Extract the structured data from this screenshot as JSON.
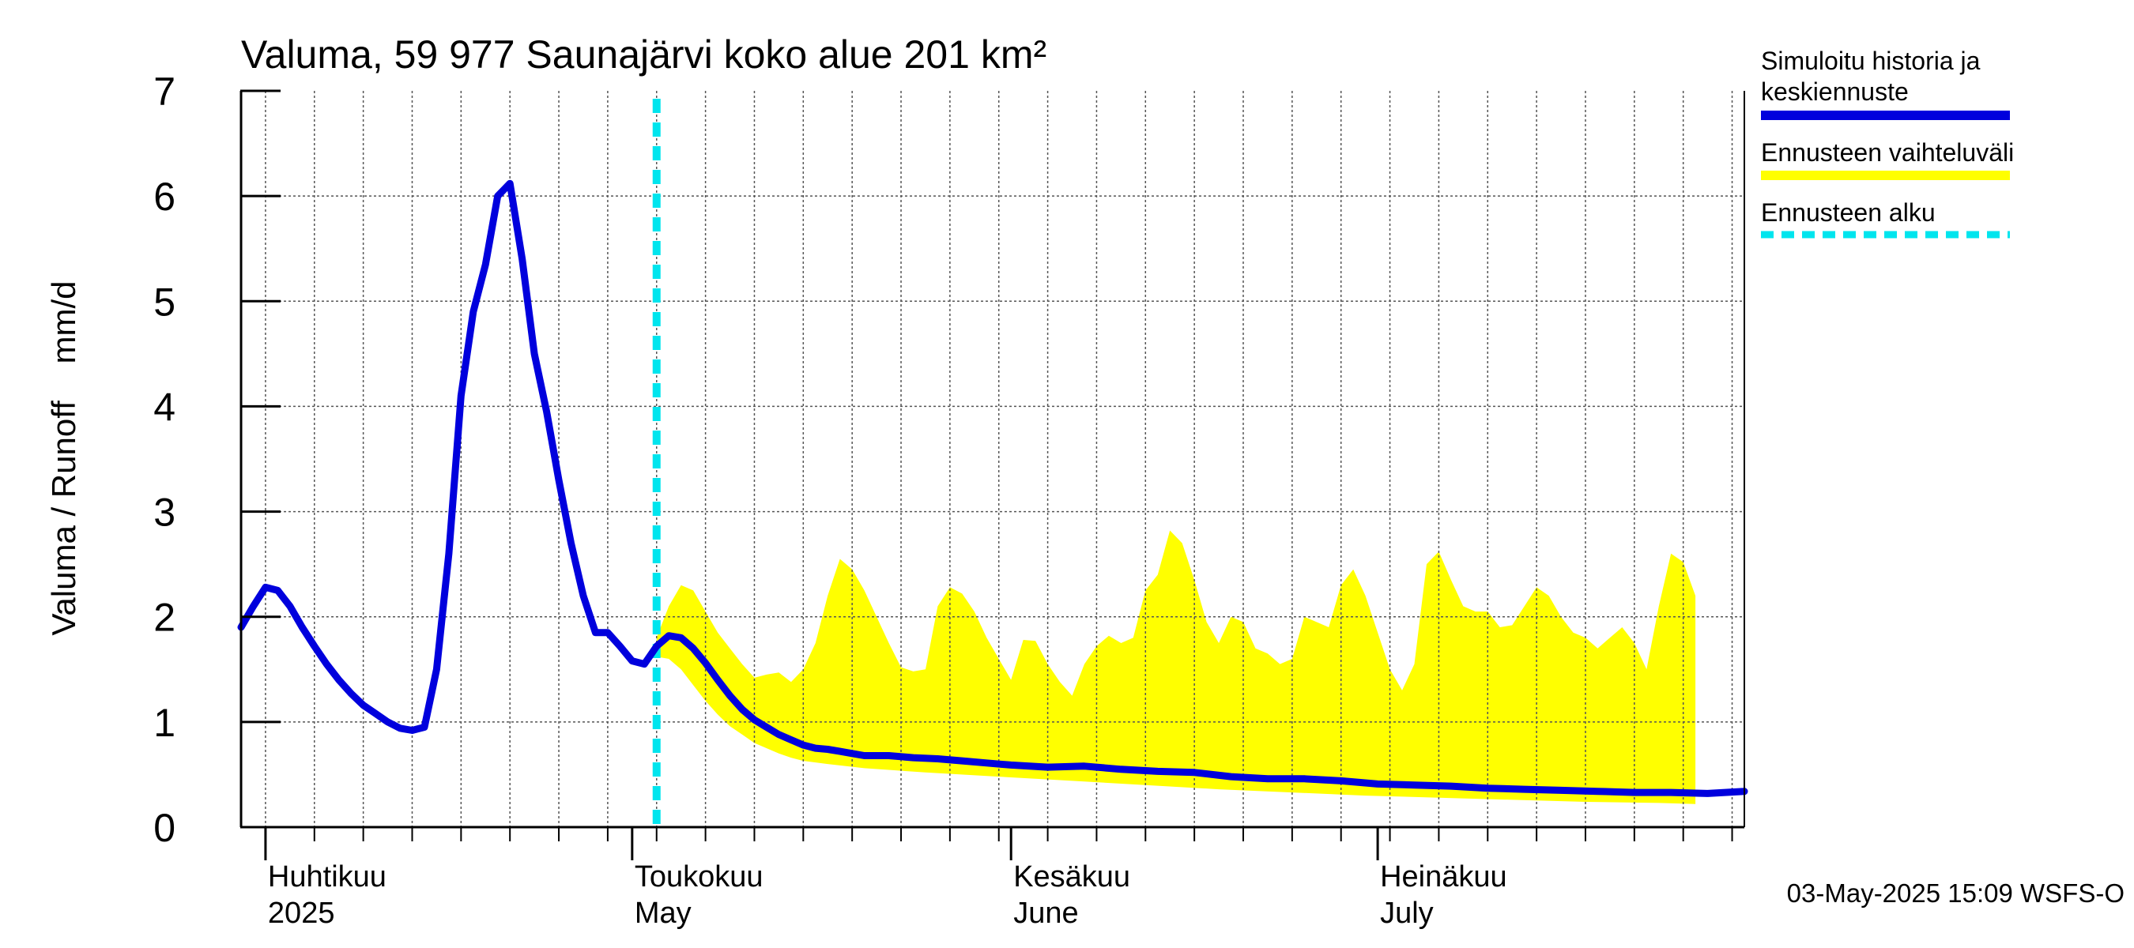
{
  "chart_data": {
    "type": "line",
    "title": "Valuma, 59 977 Saunajärvi koko alue 201 km²",
    "ylabel": "Valuma / Runoff    mm/d",
    "ylim": [
      0,
      7
    ],
    "yticks": [
      0,
      1,
      2,
      3,
      4,
      5,
      6,
      7
    ],
    "xlim": [
      "2025-03-30",
      "2025-07-31"
    ],
    "grid": true,
    "legend_position": "right",
    "month_labels": [
      {
        "date": "2025-04-01",
        "line1": "Huhtikuu",
        "line2": "2025"
      },
      {
        "date": "2025-05-01",
        "line1": "Toukokuu",
        "line2": "May"
      },
      {
        "date": "2025-06-01",
        "line1": "Kesäkuu",
        "line2": "June"
      },
      {
        "date": "2025-07-01",
        "line1": "Heinäkuu",
        "line2": "July"
      }
    ],
    "forecast_start": "2025-05-03",
    "series": [
      {
        "name": "Simuloitu historia ja keskiennuste",
        "color": "#0000dd",
        "points": [
          [
            "2025-03-30",
            1.9
          ],
          [
            "2025-03-31",
            2.1
          ],
          [
            "2025-04-01",
            2.28
          ],
          [
            "2025-04-02",
            2.25
          ],
          [
            "2025-04-03",
            2.1
          ],
          [
            "2025-04-04",
            1.9
          ],
          [
            "2025-04-05",
            1.72
          ],
          [
            "2025-04-06",
            1.55
          ],
          [
            "2025-04-07",
            1.4
          ],
          [
            "2025-04-08",
            1.27
          ],
          [
            "2025-04-09",
            1.16
          ],
          [
            "2025-04-10",
            1.08
          ],
          [
            "2025-04-11",
            1.0
          ],
          [
            "2025-04-12",
            0.94
          ],
          [
            "2025-04-13",
            0.92
          ],
          [
            "2025-04-14",
            0.95
          ],
          [
            "2025-04-15",
            1.5
          ],
          [
            "2025-04-16",
            2.6
          ],
          [
            "2025-04-17",
            4.1
          ],
          [
            "2025-04-18",
            4.9
          ],
          [
            "2025-04-19",
            5.35
          ],
          [
            "2025-04-20",
            6.0
          ],
          [
            "2025-04-21",
            6.12
          ],
          [
            "2025-04-22",
            5.4
          ],
          [
            "2025-04-23",
            4.5
          ],
          [
            "2025-04-24",
            3.95
          ],
          [
            "2025-04-25",
            3.3
          ],
          [
            "2025-04-26",
            2.7
          ],
          [
            "2025-04-27",
            2.2
          ],
          [
            "2025-04-28",
            1.85
          ],
          [
            "2025-04-29",
            1.85
          ],
          [
            "2025-04-30",
            1.72
          ],
          [
            "2025-05-01",
            1.58
          ],
          [
            "2025-05-02",
            1.55
          ],
          [
            "2025-05-03",
            1.72
          ],
          [
            "2025-05-04",
            1.82
          ],
          [
            "2025-05-05",
            1.8
          ],
          [
            "2025-05-06",
            1.7
          ],
          [
            "2025-05-07",
            1.56
          ],
          [
            "2025-05-08",
            1.4
          ],
          [
            "2025-05-09",
            1.25
          ],
          [
            "2025-05-10",
            1.12
          ],
          [
            "2025-05-11",
            1.02
          ],
          [
            "2025-05-12",
            0.95
          ],
          [
            "2025-05-13",
            0.88
          ],
          [
            "2025-05-14",
            0.83
          ],
          [
            "2025-05-15",
            0.78
          ],
          [
            "2025-05-16",
            0.75
          ],
          [
            "2025-05-17",
            0.74
          ],
          [
            "2025-05-18",
            0.72
          ],
          [
            "2025-05-19",
            0.7
          ],
          [
            "2025-05-20",
            0.68
          ],
          [
            "2025-05-22",
            0.68
          ],
          [
            "2025-05-24",
            0.66
          ],
          [
            "2025-05-26",
            0.65
          ],
          [
            "2025-05-28",
            0.63
          ],
          [
            "2025-05-30",
            0.61
          ],
          [
            "2025-06-01",
            0.59
          ],
          [
            "2025-06-04",
            0.57
          ],
          [
            "2025-06-07",
            0.58
          ],
          [
            "2025-06-10",
            0.55
          ],
          [
            "2025-06-13",
            0.53
          ],
          [
            "2025-06-16",
            0.52
          ],
          [
            "2025-06-19",
            0.48
          ],
          [
            "2025-06-22",
            0.46
          ],
          [
            "2025-06-25",
            0.46
          ],
          [
            "2025-06-28",
            0.44
          ],
          [
            "2025-07-01",
            0.41
          ],
          [
            "2025-07-04",
            0.4
          ],
          [
            "2025-07-07",
            0.39
          ],
          [
            "2025-07-10",
            0.37
          ],
          [
            "2025-07-13",
            0.36
          ],
          [
            "2025-07-16",
            0.35
          ],
          [
            "2025-07-19",
            0.34
          ],
          [
            "2025-07-22",
            0.33
          ],
          [
            "2025-07-25",
            0.33
          ],
          [
            "2025-07-28",
            0.32
          ],
          [
            "2025-07-31",
            0.34
          ]
        ]
      },
      {
        "name": "Ennusteen vaihteluväli",
        "color": "#ffff00",
        "type": "band",
        "upper": [
          [
            "2025-05-03",
            1.8
          ],
          [
            "2025-05-04",
            2.1
          ],
          [
            "2025-05-05",
            2.3
          ],
          [
            "2025-05-06",
            2.25
          ],
          [
            "2025-05-07",
            2.05
          ],
          [
            "2025-05-08",
            1.85
          ],
          [
            "2025-05-09",
            1.7
          ],
          [
            "2025-05-10",
            1.55
          ],
          [
            "2025-05-11",
            1.42
          ],
          [
            "2025-05-12",
            1.45
          ],
          [
            "2025-05-13",
            1.47
          ],
          [
            "2025-05-14",
            1.38
          ],
          [
            "2025-05-15",
            1.5
          ],
          [
            "2025-05-16",
            1.75
          ],
          [
            "2025-05-17",
            2.2
          ],
          [
            "2025-05-18",
            2.55
          ],
          [
            "2025-05-19",
            2.45
          ],
          [
            "2025-05-20",
            2.25
          ],
          [
            "2025-05-21",
            2.0
          ],
          [
            "2025-05-22",
            1.75
          ],
          [
            "2025-05-23",
            1.52
          ],
          [
            "2025-05-24",
            1.48
          ],
          [
            "2025-05-25",
            1.5
          ],
          [
            "2025-05-26",
            2.1
          ],
          [
            "2025-05-27",
            2.28
          ],
          [
            "2025-05-28",
            2.22
          ],
          [
            "2025-05-29",
            2.05
          ],
          [
            "2025-05-30",
            1.8
          ],
          [
            "2025-05-31",
            1.6
          ],
          [
            "2025-06-01",
            1.4
          ],
          [
            "2025-06-02",
            1.78
          ],
          [
            "2025-06-03",
            1.77
          ],
          [
            "2025-06-04",
            1.55
          ],
          [
            "2025-06-05",
            1.38
          ],
          [
            "2025-06-06",
            1.25
          ],
          [
            "2025-06-07",
            1.55
          ],
          [
            "2025-06-08",
            1.72
          ],
          [
            "2025-06-09",
            1.82
          ],
          [
            "2025-06-10",
            1.75
          ],
          [
            "2025-06-11",
            1.8
          ],
          [
            "2025-06-12",
            2.25
          ],
          [
            "2025-06-13",
            2.4
          ],
          [
            "2025-06-14",
            2.82
          ],
          [
            "2025-06-15",
            2.7
          ],
          [
            "2025-06-16",
            2.35
          ],
          [
            "2025-06-17",
            1.95
          ],
          [
            "2025-06-18",
            1.75
          ],
          [
            "2025-06-19",
            2.0
          ],
          [
            "2025-06-20",
            1.95
          ],
          [
            "2025-06-21",
            1.7
          ],
          [
            "2025-06-22",
            1.65
          ],
          [
            "2025-06-23",
            1.55
          ],
          [
            "2025-06-24",
            1.6
          ],
          [
            "2025-06-25",
            2.0
          ],
          [
            "2025-06-26",
            1.95
          ],
          [
            "2025-06-27",
            1.9
          ],
          [
            "2025-06-28",
            2.3
          ],
          [
            "2025-06-29",
            2.45
          ],
          [
            "2025-06-30",
            2.2
          ],
          [
            "2025-07-01",
            1.85
          ],
          [
            "2025-07-02",
            1.5
          ],
          [
            "2025-07-03",
            1.3
          ],
          [
            "2025-07-04",
            1.55
          ],
          [
            "2025-07-05",
            2.5
          ],
          [
            "2025-07-06",
            2.62
          ],
          [
            "2025-07-07",
            2.35
          ],
          [
            "2025-07-08",
            2.1
          ],
          [
            "2025-07-09",
            2.05
          ],
          [
            "2025-07-10",
            2.05
          ],
          [
            "2025-07-11",
            1.9
          ],
          [
            "2025-07-12",
            1.92
          ],
          [
            "2025-07-13",
            2.1
          ],
          [
            "2025-07-14",
            2.28
          ],
          [
            "2025-07-15",
            2.2
          ],
          [
            "2025-07-16",
            2.0
          ],
          [
            "2025-07-17",
            1.85
          ],
          [
            "2025-07-18",
            1.8
          ],
          [
            "2025-07-19",
            1.7
          ],
          [
            "2025-07-20",
            1.8
          ],
          [
            "2025-07-21",
            1.9
          ],
          [
            "2025-07-22",
            1.75
          ],
          [
            "2025-07-23",
            1.5
          ],
          [
            "2025-07-24",
            2.1
          ],
          [
            "2025-07-25",
            2.6
          ],
          [
            "2025-07-26",
            2.52
          ],
          [
            "2025-07-27",
            2.2
          ]
        ],
        "lower": [
          [
            "2025-05-03",
            1.62
          ],
          [
            "2025-05-04",
            1.6
          ],
          [
            "2025-05-05",
            1.5
          ],
          [
            "2025-05-06",
            1.35
          ],
          [
            "2025-05-07",
            1.2
          ],
          [
            "2025-05-08",
            1.07
          ],
          [
            "2025-05-09",
            0.96
          ],
          [
            "2025-05-10",
            0.88
          ],
          [
            "2025-05-11",
            0.8
          ],
          [
            "2025-05-12",
            0.75
          ],
          [
            "2025-05-13",
            0.7
          ],
          [
            "2025-05-14",
            0.66
          ],
          [
            "2025-05-15",
            0.63
          ],
          [
            "2025-05-17",
            0.6
          ],
          [
            "2025-05-20",
            0.56
          ],
          [
            "2025-05-25",
            0.52
          ],
          [
            "2025-05-31",
            0.48
          ],
          [
            "2025-06-06",
            0.44
          ],
          [
            "2025-06-12",
            0.4
          ],
          [
            "2025-06-18",
            0.36
          ],
          [
            "2025-06-24",
            0.33
          ],
          [
            "2025-06-30",
            0.3
          ],
          [
            "2025-07-06",
            0.28
          ],
          [
            "2025-07-12",
            0.26
          ],
          [
            "2025-07-18",
            0.24
          ],
          [
            "2025-07-24",
            0.23
          ],
          [
            "2025-07-27",
            0.22
          ]
        ]
      },
      {
        "name": "Ennusteen alku",
        "color": "#00e5ee",
        "type": "vline"
      }
    ]
  },
  "legend": [
    {
      "line1": "Simuloitu historia ja",
      "line2": "keskiennuste",
      "color": "#0000dd",
      "style": "solid"
    },
    {
      "line1": "Ennusteen vaihteluväli",
      "line2": "",
      "color": "#ffff00",
      "style": "solid"
    },
    {
      "line1": "Ennusteen alku",
      "line2": "",
      "color": "#00e5ee",
      "style": "dashed"
    }
  ],
  "footer": "03-May-2025 15:09 WSFS-O"
}
